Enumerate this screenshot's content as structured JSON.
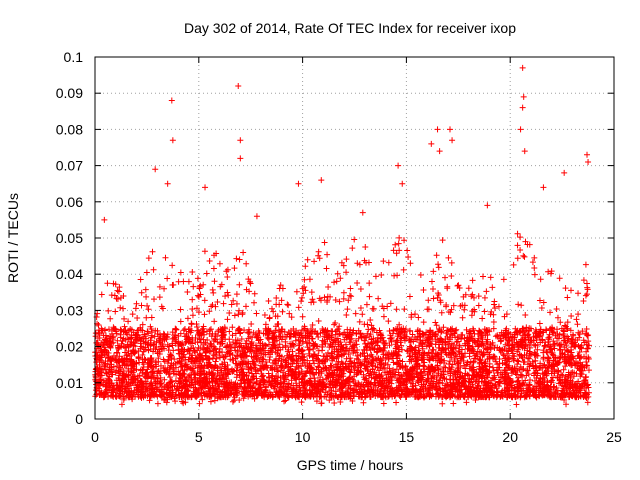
{
  "chart_data": {
    "type": "scatter",
    "title": "Day 302 of 2014, Rate Of TEC Index for receiver ixop",
    "xlabel": "GPS time / hours",
    "ylabel": "ROTI / TECUs",
    "xlim": [
      0,
      25
    ],
    "ylim": [
      0,
      0.1
    ],
    "xticks": [
      0,
      5,
      10,
      15,
      20,
      25
    ],
    "xtick_labels": [
      "0",
      "5",
      "10",
      "15",
      "20",
      "25"
    ],
    "yticks": [
      0,
      0.01,
      0.02,
      0.03,
      0.04,
      0.05,
      0.06,
      0.07,
      0.08,
      0.09,
      0.1
    ],
    "ytick_labels": [
      "0",
      "0.01",
      "0.02",
      "0.03",
      "0.04",
      "0.05",
      "0.06",
      "0.07",
      "0.08",
      "0.09",
      "0.1"
    ],
    "grid": true,
    "marker": "+",
    "color": "#ff0000",
    "data_x_range": [
      0,
      23.8
    ],
    "typical_range": [
      0.006,
      0.025
    ],
    "notable_peaks": [
      {
        "x": 3.7,
        "y": 0.088
      },
      {
        "x": 3.75,
        "y": 0.077
      },
      {
        "x": 6.9,
        "y": 0.092
      },
      {
        "x": 7.0,
        "y": 0.077
      },
      {
        "x": 7.0,
        "y": 0.072
      },
      {
        "x": 2.9,
        "y": 0.069
      },
      {
        "x": 3.5,
        "y": 0.065
      },
      {
        "x": 5.3,
        "y": 0.064
      },
      {
        "x": 9.8,
        "y": 0.065
      },
      {
        "x": 10.9,
        "y": 0.066
      },
      {
        "x": 14.6,
        "y": 0.07
      },
      {
        "x": 14.8,
        "y": 0.065
      },
      {
        "x": 16.2,
        "y": 0.076
      },
      {
        "x": 16.5,
        "y": 0.08
      },
      {
        "x": 16.6,
        "y": 0.074
      },
      {
        "x": 17.1,
        "y": 0.08
      },
      {
        "x": 17.2,
        "y": 0.077
      },
      {
        "x": 18.9,
        "y": 0.059
      },
      {
        "x": 20.6,
        "y": 0.097
      },
      {
        "x": 20.65,
        "y": 0.089
      },
      {
        "x": 20.6,
        "y": 0.086
      },
      {
        "x": 20.5,
        "y": 0.08
      },
      {
        "x": 20.7,
        "y": 0.074
      },
      {
        "x": 21.6,
        "y": 0.064
      },
      {
        "x": 22.6,
        "y": 0.068
      },
      {
        "x": 23.7,
        "y": 0.073
      },
      {
        "x": 23.75,
        "y": 0.071
      },
      {
        "x": 0.45,
        "y": 0.055
      },
      {
        "x": 7.8,
        "y": 0.056
      },
      {
        "x": 12.9,
        "y": 0.057
      }
    ],
    "activity_envelope": [
      [
        0.0,
        0.03
      ],
      [
        0.5,
        0.038
      ],
      [
        1.0,
        0.04
      ],
      [
        1.5,
        0.033
      ],
      [
        2.0,
        0.036
      ],
      [
        2.5,
        0.045
      ],
      [
        3.0,
        0.05
      ],
      [
        3.5,
        0.048
      ],
      [
        4.0,
        0.04
      ],
      [
        4.5,
        0.042
      ],
      [
        5.0,
        0.045
      ],
      [
        5.5,
        0.05
      ],
      [
        6.0,
        0.045
      ],
      [
        6.5,
        0.042
      ],
      [
        7.0,
        0.05
      ],
      [
        7.5,
        0.04
      ],
      [
        8.0,
        0.03
      ],
      [
        8.5,
        0.035
      ],
      [
        9.0,
        0.04
      ],
      [
        9.5,
        0.038
      ],
      [
        10.0,
        0.042
      ],
      [
        10.5,
        0.048
      ],
      [
        11.0,
        0.05
      ],
      [
        11.5,
        0.04
      ],
      [
        12.0,
        0.045
      ],
      [
        12.5,
        0.05
      ],
      [
        13.0,
        0.048
      ],
      [
        13.5,
        0.04
      ],
      [
        14.0,
        0.045
      ],
      [
        14.5,
        0.055
      ],
      [
        15.0,
        0.05
      ],
      [
        15.5,
        0.04
      ],
      [
        16.0,
        0.042
      ],
      [
        16.5,
        0.05
      ],
      [
        17.0,
        0.052
      ],
      [
        17.5,
        0.04
      ],
      [
        18.0,
        0.038
      ],
      [
        18.5,
        0.04
      ],
      [
        19.0,
        0.042
      ],
      [
        19.5,
        0.038
      ],
      [
        20.0,
        0.045
      ],
      [
        20.5,
        0.055
      ],
      [
        21.0,
        0.048
      ],
      [
        21.5,
        0.042
      ],
      [
        22.0,
        0.045
      ],
      [
        22.5,
        0.04
      ],
      [
        23.0,
        0.035
      ],
      [
        23.8,
        0.045
      ]
    ]
  }
}
